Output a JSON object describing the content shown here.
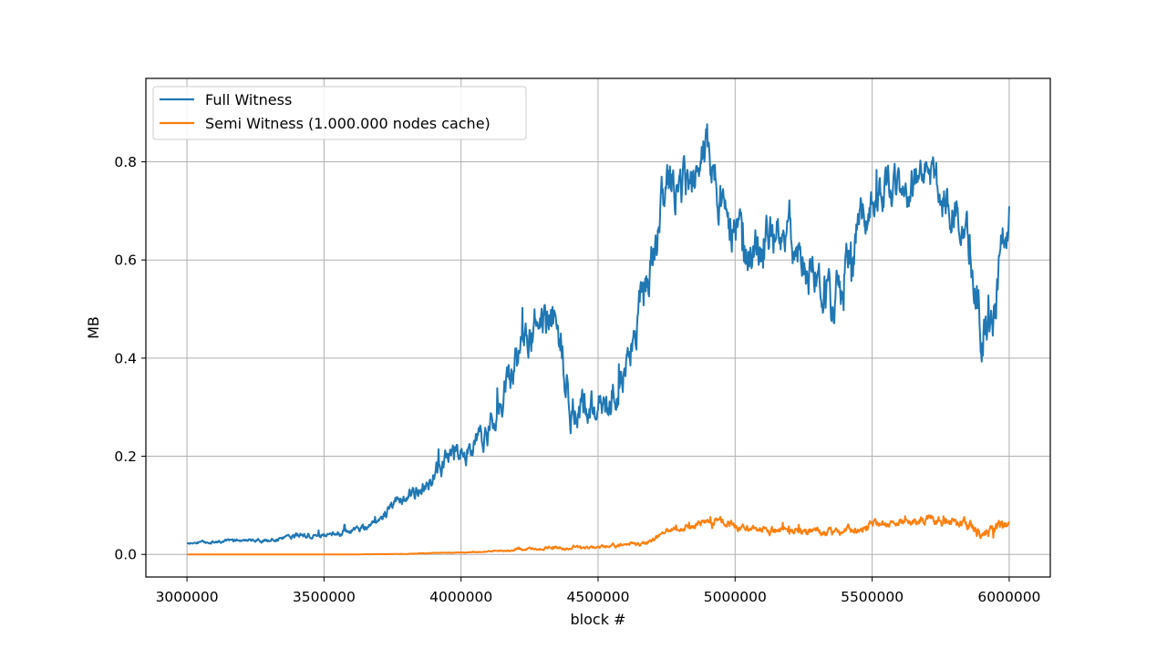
{
  "chart_data": {
    "type": "line",
    "xlabel": "block #",
    "ylabel": "MB",
    "xlim": [
      2850000,
      6150000
    ],
    "ylim": [
      -0.046,
      0.97
    ],
    "xticks": [
      3000000,
      3500000,
      4000000,
      4500000,
      5000000,
      5500000,
      6000000
    ],
    "xtick_labels": [
      "3000000",
      "3500000",
      "4000000",
      "4500000",
      "5000000",
      "5500000",
      "6000000"
    ],
    "yticks": [
      0.0,
      0.2,
      0.4,
      0.6,
      0.8
    ],
    "ytick_labels": [
      "0.0",
      "0.2",
      "0.4",
      "0.6",
      "0.8"
    ],
    "grid": true,
    "legend_position": "top-left",
    "series": [
      {
        "name": "Full Witness",
        "color": "#1f77b4",
        "x": [
          3000000,
          3100000,
          3200000,
          3300000,
          3400000,
          3500000,
          3600000,
          3650000,
          3700000,
          3750000,
          3800000,
          3850000,
          3900000,
          3950000,
          4000000,
          4050000,
          4100000,
          4150000,
          4200000,
          4250000,
          4300000,
          4350000,
          4370000,
          4400000,
          4450000,
          4500000,
          4550000,
          4600000,
          4650000,
          4700000,
          4750000,
          4800000,
          4850000,
          4900000,
          4950000,
          5000000,
          5050000,
          5100000,
          5150000,
          5200000,
          5250000,
          5300000,
          5350000,
          5400000,
          5450000,
          5500000,
          5550000,
          5600000,
          5650000,
          5700000,
          5750000,
          5800000,
          5850000,
          5880000,
          5900000,
          5950000,
          5970000,
          6000000
        ],
        "y": [
          0.022,
          0.026,
          0.028,
          0.03,
          0.038,
          0.04,
          0.048,
          0.055,
          0.07,
          0.1,
          0.12,
          0.13,
          0.165,
          0.195,
          0.205,
          0.22,
          0.25,
          0.31,
          0.38,
          0.44,
          0.47,
          0.46,
          0.43,
          0.3,
          0.29,
          0.32,
          0.33,
          0.36,
          0.5,
          0.6,
          0.76,
          0.74,
          0.79,
          0.82,
          0.72,
          0.66,
          0.6,
          0.62,
          0.66,
          0.63,
          0.6,
          0.57,
          0.52,
          0.56,
          0.68,
          0.72,
          0.75,
          0.73,
          0.76,
          0.78,
          0.74,
          0.7,
          0.66,
          0.5,
          0.45,
          0.48,
          0.62,
          0.7
        ],
        "noise_amplitude": [
          0.003,
          0.004,
          0.004,
          0.005,
          0.007,
          0.007,
          0.008,
          0.009,
          0.012,
          0.015,
          0.018,
          0.02,
          0.024,
          0.026,
          0.028,
          0.03,
          0.036,
          0.045,
          0.05,
          0.055,
          0.06,
          0.05,
          0.06,
          0.045,
          0.045,
          0.045,
          0.045,
          0.05,
          0.055,
          0.055,
          0.06,
          0.06,
          0.06,
          0.06,
          0.06,
          0.06,
          0.06,
          0.058,
          0.058,
          0.058,
          0.058,
          0.06,
          0.06,
          0.06,
          0.055,
          0.05,
          0.05,
          0.05,
          0.05,
          0.05,
          0.055,
          0.06,
          0.06,
          0.07,
          0.07,
          0.07,
          0.07,
          0.06
        ]
      },
      {
        "name": "Semi Witness (1.000.000 nodes cache)",
        "color": "#ff7f0e",
        "x": [
          3000000,
          3300000,
          3600000,
          3800000,
          3900000,
          4000000,
          4100000,
          4150000,
          4200000,
          4300000,
          4400000,
          4500000,
          4600000,
          4650000,
          4700000,
          4750000,
          4800000,
          4850000,
          4900000,
          4950000,
          5000000,
          5050000,
          5100000,
          5200000,
          5300000,
          5350000,
          5400000,
          5450000,
          5500000,
          5550000,
          5600000,
          5650000,
          5700000,
          5750000,
          5800000,
          5850000,
          5880000,
          5900000,
          5950000,
          5970000,
          6000000
        ],
        "y": [
          0.0,
          0.0,
          0.0,
          0.001,
          0.003,
          0.004,
          0.006,
          0.008,
          0.01,
          0.013,
          0.012,
          0.016,
          0.02,
          0.022,
          0.03,
          0.045,
          0.055,
          0.062,
          0.065,
          0.068,
          0.055,
          0.052,
          0.05,
          0.05,
          0.048,
          0.045,
          0.05,
          0.052,
          0.058,
          0.063,
          0.066,
          0.068,
          0.07,
          0.072,
          0.065,
          0.06,
          0.05,
          0.045,
          0.05,
          0.06,
          0.06
        ],
        "noise_amplitude": [
          0.0,
          0.0,
          0.0,
          0.0005,
          0.0008,
          0.001,
          0.0015,
          0.002,
          0.003,
          0.004,
          0.004,
          0.004,
          0.005,
          0.006,
          0.007,
          0.008,
          0.009,
          0.009,
          0.01,
          0.01,
          0.01,
          0.01,
          0.01,
          0.01,
          0.01,
          0.01,
          0.01,
          0.01,
          0.011,
          0.011,
          0.011,
          0.011,
          0.011,
          0.012,
          0.012,
          0.012,
          0.014,
          0.014,
          0.014,
          0.014,
          0.012
        ]
      }
    ]
  }
}
